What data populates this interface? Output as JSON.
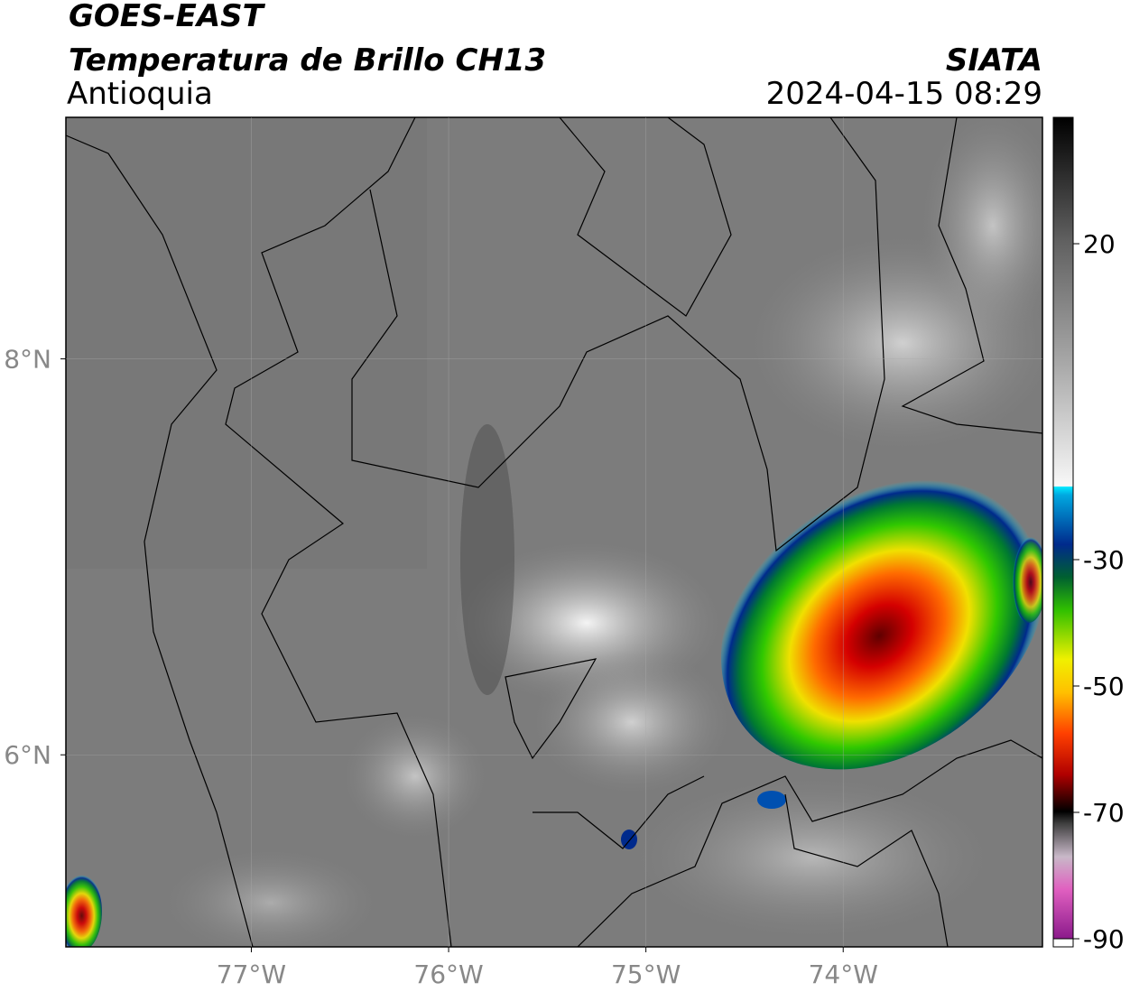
{
  "map": {
    "title": "GOES-EAST",
    "subtitle": "Temperatura de Brillo CH13",
    "region": "Antioquia",
    "source": "SIATA",
    "datetime": "2024-04-15 08:29",
    "lon_range": [
      -77.94,
      -72.99
    ],
    "lat_range": [
      5.03,
      9.22
    ],
    "lon_ticks": [
      {
        "value": -77,
        "label": "77°W"
      },
      {
        "value": -76,
        "label": "76°W"
      },
      {
        "value": -75,
        "label": "75°W"
      },
      {
        "value": -74,
        "label": "74°W"
      }
    ],
    "lat_ticks": [
      {
        "value": 8,
        "label": "8°N"
      },
      {
        "value": 6,
        "label": "6°N"
      }
    ],
    "colorbar": {
      "range": [
        -90,
        40
      ],
      "ticks": [
        20,
        -30,
        -50,
        -70,
        -90
      ]
    }
  }
}
